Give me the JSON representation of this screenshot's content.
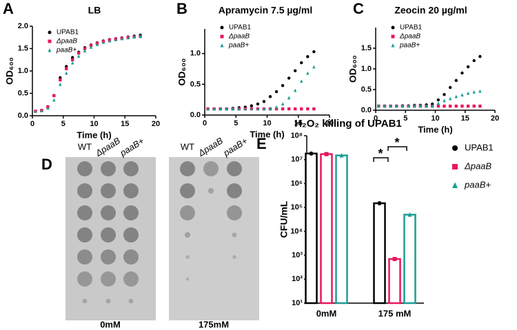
{
  "chart_data": [
    {
      "type": "line",
      "panel": "A",
      "title": "LB",
      "xlabel": "Time (h)",
      "ylabel": "OD₆₀₀",
      "x": [
        0.5,
        1.5,
        2.5,
        3.5,
        4.5,
        5.5,
        6.5,
        7.5,
        8.5,
        9.5,
        10.5,
        11.5,
        12.5,
        13.5,
        14.5,
        15.5,
        16.5,
        17.5
      ],
      "series": [
        {
          "name": "UPAB1",
          "color": "#000000",
          "marker": "circle",
          "values": [
            0.1,
            0.12,
            0.2,
            0.45,
            0.85,
            1.1,
            1.3,
            1.42,
            1.52,
            1.58,
            1.63,
            1.67,
            1.7,
            1.72,
            1.74,
            1.76,
            1.78,
            1.8
          ]
        },
        {
          "name": "ΔpaaB",
          "color": "#e8175d",
          "marker": "square",
          "values": [
            0.1,
            0.12,
            0.2,
            0.45,
            0.8,
            1.05,
            1.25,
            1.4,
            1.5,
            1.57,
            1.62,
            1.66,
            1.69,
            1.71,
            1.73,
            1.75,
            1.76,
            1.77
          ]
        },
        {
          "name": "paaB+",
          "color": "#1b9e94",
          "marker": "triangle",
          "values": [
            0.1,
            0.11,
            0.17,
            0.35,
            0.7,
            0.95,
            1.18,
            1.33,
            1.45,
            1.53,
            1.59,
            1.64,
            1.67,
            1.7,
            1.72,
            1.74,
            1.76,
            1.77
          ]
        }
      ],
      "xlim": [
        0,
        20
      ],
      "xticks": [
        0,
        5,
        10,
        15,
        20
      ],
      "ylim": [
        0,
        2
      ],
      "yticks": [
        {
          "value": 0,
          "label": "0.0"
        },
        {
          "value": 0.5,
          "label": "0.5"
        },
        {
          "value": 1,
          "label": "1.0"
        },
        {
          "value": 1.5,
          "label": "1.5"
        },
        {
          "value": 2,
          "label": "2.0"
        }
      ]
    },
    {
      "type": "line",
      "panel": "B",
      "title": "Apramycin 7.5 µg/ml",
      "xlabel": "Time (h)",
      "ylabel": "OD₆₀₀",
      "x": [
        0.5,
        1.5,
        2.5,
        3.5,
        4.5,
        5.5,
        6.5,
        7.5,
        8.5,
        9.5,
        10.5,
        11.5,
        12.5,
        13.5,
        14.5,
        15.5,
        16.5,
        17.5
      ],
      "series": [
        {
          "name": "UPAB1",
          "color": "#000000",
          "marker": "circle",
          "values": [
            0.1,
            0.1,
            0.1,
            0.1,
            0.11,
            0.12,
            0.13,
            0.15,
            0.18,
            0.22,
            0.3,
            0.38,
            0.48,
            0.6,
            0.72,
            0.85,
            0.95,
            1.03
          ]
        },
        {
          "name": "ΔpaaB",
          "color": "#e8175d",
          "marker": "square",
          "values": [
            0.1,
            0.1,
            0.1,
            0.1,
            0.1,
            0.1,
            0.1,
            0.1,
            0.1,
            0.1,
            0.1,
            0.1,
            0.1,
            0.1,
            0.1,
            0.1,
            0.1,
            0.1
          ]
        },
        {
          "name": "paaB+",
          "color": "#1b9e94",
          "marker": "triangle",
          "values": [
            0.1,
            0.1,
            0.1,
            0.1,
            0.1,
            0.1,
            0.1,
            0.1,
            0.1,
            0.1,
            0.1,
            0.13,
            0.18,
            0.28,
            0.4,
            0.55,
            0.68,
            0.78
          ]
        }
      ],
      "xlim": [
        0,
        20
      ],
      "xticks": [
        0,
        5,
        10,
        15,
        20
      ],
      "ylim": [
        0,
        1.4
      ],
      "yticks": [
        {
          "value": 0,
          "label": "0.0"
        },
        {
          "value": 0.5,
          "label": "0.5"
        },
        {
          "value": 1,
          "label": "1.0"
        }
      ]
    },
    {
      "type": "line",
      "panel": "C",
      "title": "Zeocin 20 µg/ml",
      "xlabel": "Time (h)",
      "ylabel": "OD₆₀₀",
      "x": [
        0.5,
        1.5,
        2.5,
        3.5,
        4.5,
        5.5,
        6.5,
        7.5,
        8.5,
        9.5,
        10.5,
        11.5,
        12.5,
        13.5,
        14.5,
        15.5,
        16.5,
        17.5
      ],
      "series": [
        {
          "name": "UPAB1",
          "color": "#000000",
          "marker": "circle",
          "values": [
            0.1,
            0.1,
            0.1,
            0.1,
            0.11,
            0.11,
            0.12,
            0.12,
            0.13,
            0.15,
            0.25,
            0.38,
            0.55,
            0.72,
            0.9,
            1.05,
            1.2,
            1.3
          ]
        },
        {
          "name": "ΔpaaB",
          "color": "#e8175d",
          "marker": "square",
          "values": [
            0.1,
            0.1,
            0.1,
            0.1,
            0.1,
            0.1,
            0.1,
            0.1,
            0.1,
            0.1,
            0.1,
            0.1,
            0.1,
            0.1,
            0.1,
            0.1,
            0.1,
            0.1
          ]
        },
        {
          "name": "paaB+",
          "color": "#1b9e94",
          "marker": "triangle",
          "values": [
            0.1,
            0.1,
            0.1,
            0.1,
            0.1,
            0.1,
            0.1,
            0.1,
            0.1,
            0.1,
            0.17,
            0.23,
            0.28,
            0.33,
            0.37,
            0.41,
            0.44,
            0.46
          ]
        }
      ],
      "xlim": [
        0,
        20
      ],
      "xticks": [
        0,
        5,
        10,
        15,
        20
      ],
      "ylim": [
        0,
        2
      ],
      "yticks": [
        {
          "value": 0,
          "label": "0.0"
        },
        {
          "value": 0.5,
          "label": "0.5"
        },
        {
          "value": 1,
          "label": "1.0"
        },
        {
          "value": 1.5,
          "label": "1.5"
        }
      ]
    },
    {
      "type": "bar",
      "panel": "E",
      "title": "H₂O₂ killing of UPAB1",
      "ylabel": "CFU/mL",
      "categories": [
        "0mM",
        "175 mM"
      ],
      "series": [
        {
          "name": "UPAB1",
          "color": "#000000",
          "marker": "circle",
          "values": [
            18000000,
            150000
          ]
        },
        {
          "name": "ΔpaaB",
          "color": "#e8175d",
          "marker": "square",
          "values": [
            17000000,
            700
          ]
        },
        {
          "name": "paaB+",
          "color": "#1b9e94",
          "marker": "triangle",
          "values": [
            15000000,
            50000
          ]
        }
      ],
      "log_scale": true,
      "ylim": [
        10,
        100000000
      ],
      "yticks": [
        {
          "value": 10,
          "label": "10¹"
        },
        {
          "value": 100,
          "label": "10²"
        },
        {
          "value": 1000,
          "label": "10³"
        },
        {
          "value": 10000,
          "label": "10⁴"
        },
        {
          "value": 100000,
          "label": "10⁵"
        },
        {
          "value": 1000000,
          "label": "10⁶"
        },
        {
          "value": 10000000,
          "label": "10⁷"
        },
        {
          "value": 100000000,
          "label": "10⁸"
        }
      ],
      "annotations": [
        "*",
        "*"
      ]
    }
  ],
  "plates": {
    "panel": "D",
    "columns": [
      "WT",
      "ΔpaaB",
      "paaB+",
      "WT",
      "ΔpaaB",
      "paaB+"
    ],
    "labels": [
      "0mM",
      "175mM"
    ]
  }
}
